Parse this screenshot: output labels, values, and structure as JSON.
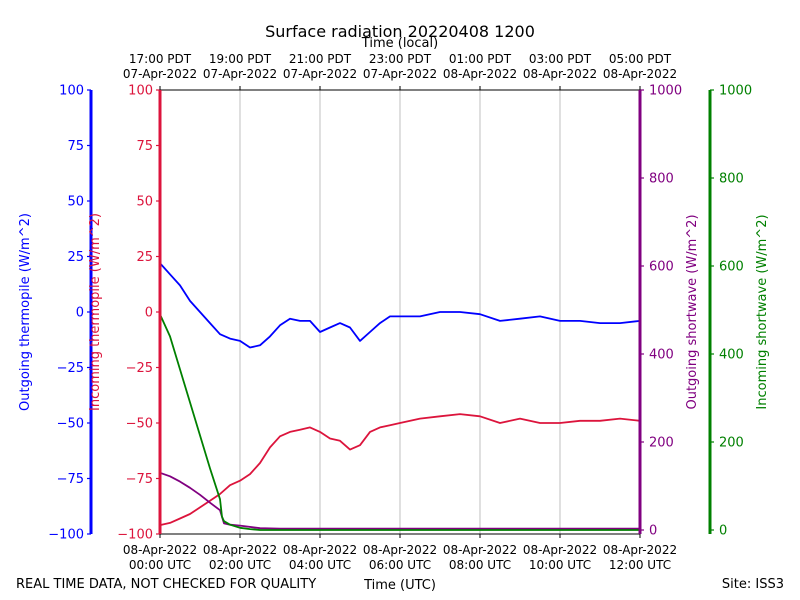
{
  "chart_data": {
    "type": "line",
    "title": "Surface radiation 20220408 1200",
    "top_axis_label": "Time (local)",
    "xlabel": "Time (UTC)",
    "footer_left": "REAL TIME DATA, NOT CHECKED FOR QUALITY",
    "footer_right": "Site: ISS3",
    "x_range_hours": [
      0,
      12
    ],
    "bottom_ticks": [
      {
        "hour": 0,
        "line1": "08-Apr-2022",
        "line2": "00:00 UTC"
      },
      {
        "hour": 2,
        "line1": "08-Apr-2022",
        "line2": "02:00 UTC"
      },
      {
        "hour": 4,
        "line1": "08-Apr-2022",
        "line2": "04:00 UTC"
      },
      {
        "hour": 6,
        "line1": "08-Apr-2022",
        "line2": "06:00 UTC"
      },
      {
        "hour": 8,
        "line1": "08-Apr-2022",
        "line2": "08:00 UTC"
      },
      {
        "hour": 10,
        "line1": "08-Apr-2022",
        "line2": "10:00 UTC"
      },
      {
        "hour": 12,
        "line1": "08-Apr-2022",
        "line2": "12:00 UTC"
      }
    ],
    "top_ticks": [
      {
        "hour": 0,
        "line1": "17:00 PDT",
        "line2": "07-Apr-2022"
      },
      {
        "hour": 2,
        "line1": "19:00 PDT",
        "line2": "07-Apr-2022"
      },
      {
        "hour": 4,
        "line1": "21:00 PDT",
        "line2": "07-Apr-2022"
      },
      {
        "hour": 6,
        "line1": "23:00 PDT",
        "line2": "07-Apr-2022"
      },
      {
        "hour": 8,
        "line1": "01:00 PDT",
        "line2": "08-Apr-2022"
      },
      {
        "hour": 10,
        "line1": "03:00 PDT",
        "line2": "08-Apr-2022"
      },
      {
        "hour": 12,
        "line1": "05:00 PDT",
        "line2": "08-Apr-2022"
      }
    ],
    "grid": "vertical",
    "axes": [
      {
        "id": "outgoing_thermopile",
        "label": "Outgoing thermopile (W/m^2)",
        "color": "#0000ff",
        "range": [
          -100,
          100
        ],
        "ticks": [
          "100",
          "75",
          "50",
          "25",
          "0",
          "−25",
          "−50",
          "−75",
          "−100"
        ]
      },
      {
        "id": "incoming_thermopile",
        "label": "Incoming thermopile (W/m^2)",
        "color": "#dc143c",
        "range": [
          -100,
          100
        ],
        "ticks": [
          "100",
          "75",
          "50",
          "25",
          "0",
          "−25",
          "−50",
          "−75",
          "−100"
        ]
      },
      {
        "id": "outgoing_shortwave",
        "label": "Outgoing shortwave (W/m^2)",
        "color": "#800080",
        "range": [
          0,
          1000
        ],
        "ticks": [
          "1000",
          "800",
          "600",
          "400",
          "200",
          "0"
        ]
      },
      {
        "id": "incoming_shortwave",
        "label": "Incoming shortwave (W/m^2)",
        "color": "#008000",
        "range": [
          0,
          1000
        ],
        "ticks": [
          "1000",
          "800",
          "600",
          "400",
          "200",
          "0"
        ]
      }
    ],
    "series": [
      {
        "axis": "outgoing_thermopile",
        "color": "#0000ff",
        "x": [
          0,
          0.1,
          0.25,
          0.5,
          0.75,
          1.0,
          1.25,
          1.5,
          1.75,
          2.0,
          2.25,
          2.5,
          2.75,
          3.0,
          3.25,
          3.5,
          3.75,
          4.0,
          4.25,
          4.5,
          4.75,
          5.0,
          5.25,
          5.5,
          5.75,
          6.0,
          6.5,
          7.0,
          7.5,
          8.0,
          8.5,
          9.0,
          9.5,
          10.0,
          10.5,
          11.0,
          11.5,
          12.0
        ],
        "y": [
          22,
          20,
          17,
          12,
          5,
          0,
          -5,
          -10,
          -12,
          -13,
          -16,
          -15,
          -11,
          -6,
          -3,
          -4,
          -4,
          -9,
          -7,
          -5,
          -7,
          -13,
          -9,
          -5,
          -2,
          -2,
          -2,
          0,
          0,
          -1,
          -4,
          -3,
          -2,
          -4,
          -4,
          -5,
          -5,
          -4
        ]
      },
      {
        "axis": "incoming_thermopile",
        "color": "#dc143c",
        "x": [
          0,
          0.25,
          0.5,
          0.75,
          1.0,
          1.25,
          1.5,
          1.75,
          2.0,
          2.25,
          2.5,
          2.75,
          3.0,
          3.25,
          3.5,
          3.75,
          4.0,
          4.25,
          4.5,
          4.75,
          5.0,
          5.25,
          5.5,
          5.75,
          6.0,
          6.5,
          7.0,
          7.5,
          8.0,
          8.5,
          9.0,
          9.5,
          10.0,
          10.5,
          11.0,
          11.5,
          12.0
        ],
        "y": [
          -96,
          -95,
          -93,
          -91,
          -88,
          -85,
          -82,
          -78,
          -76,
          -73,
          -68,
          -61,
          -56,
          -54,
          -53,
          -52,
          -54,
          -57,
          -58,
          -62,
          -60,
          -54,
          -52,
          -51,
          -50,
          -48,
          -47,
          -46,
          -47,
          -50,
          -48,
          -50,
          -50,
          -49,
          -49,
          -48,
          -49
        ]
      },
      {
        "axis": "outgoing_shortwave",
        "color": "#800080",
        "x": [
          0,
          0.25,
          0.5,
          0.75,
          1.0,
          1.25,
          1.5,
          1.6,
          1.75,
          2.0,
          2.5,
          3.0,
          4.0,
          5.0,
          6.0,
          7.0,
          8.0,
          9.0,
          10.0,
          11.0,
          12.0
        ],
        "y": [
          130,
          122,
          110,
          96,
          80,
          62,
          45,
          15,
          12,
          10,
          4,
          3,
          3,
          3,
          3,
          3,
          3,
          3,
          3,
          3,
          3
        ]
      },
      {
        "axis": "incoming_shortwave",
        "color": "#008000",
        "x": [
          0,
          0.25,
          0.5,
          0.75,
          1.0,
          1.25,
          1.5,
          1.55,
          1.6,
          1.75,
          2.0,
          2.25,
          2.5,
          3.0,
          4.0,
          5.0,
          6.0,
          7.0,
          8.0,
          9.0,
          10.0,
          11.0,
          12.0
        ],
        "y": [
          490,
          440,
          365,
          290,
          215,
          140,
          70,
          30,
          20,
          12,
          5,
          2,
          0,
          0,
          0,
          0,
          0,
          0,
          0,
          0,
          0,
          0,
          0
        ]
      }
    ]
  }
}
